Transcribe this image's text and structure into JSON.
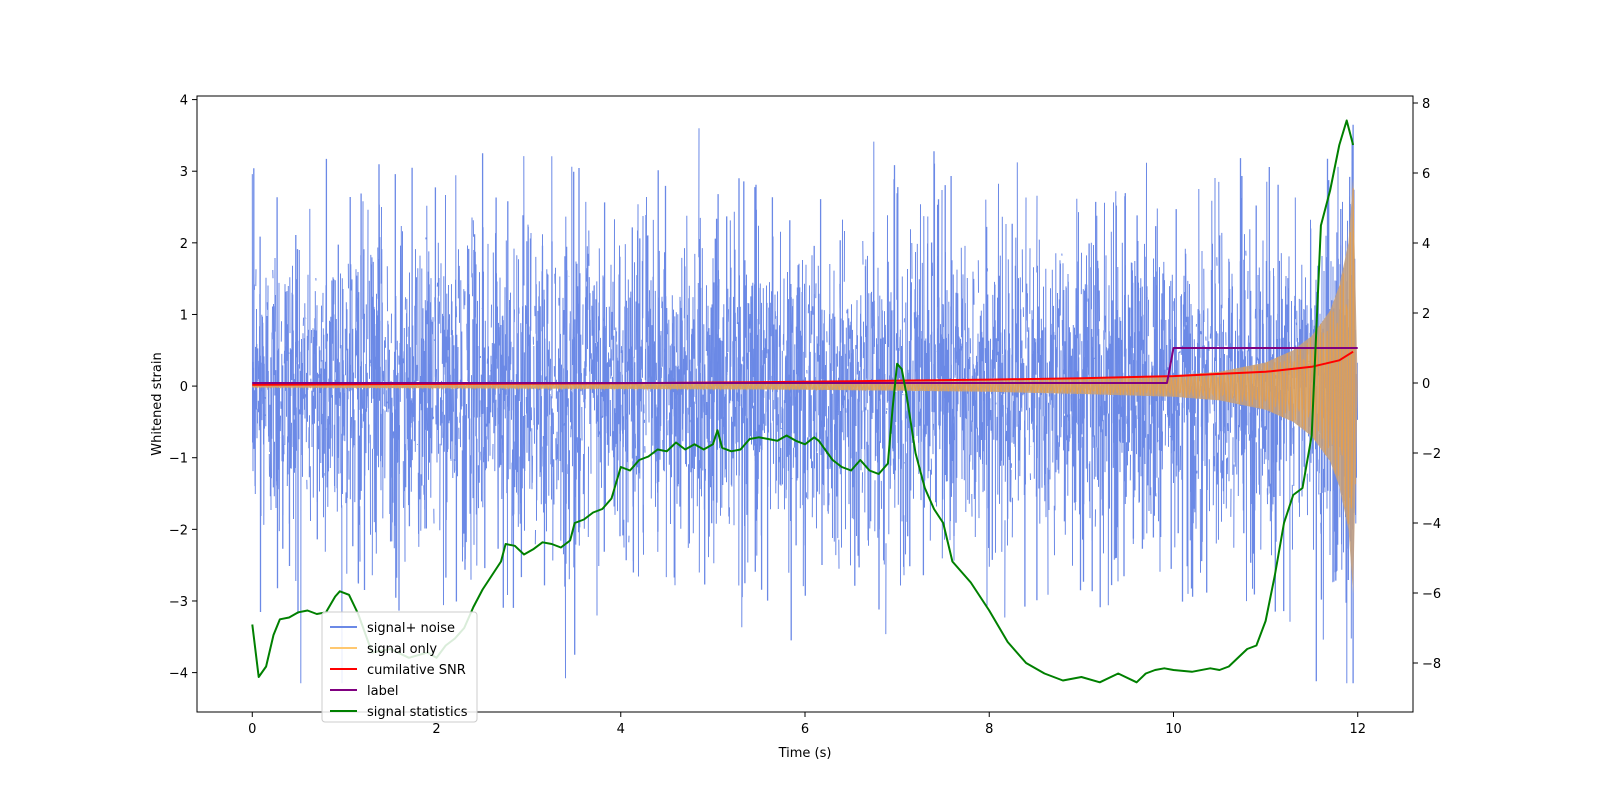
{
  "chart_data": {
    "type": "line",
    "xlabel": "Time (s)",
    "ylabel": "Whitened strain",
    "y2label": "",
    "xlim": [
      -0.6,
      12.6
    ],
    "ylim": [
      -4.55,
      4.05
    ],
    "y2lim": [
      -9.4,
      8.2
    ],
    "x_ticks": [
      0,
      2,
      4,
      6,
      8,
      10,
      12
    ],
    "x_tick_labels": [
      "0",
      "2",
      "4",
      "6",
      "8",
      "10",
      "12"
    ],
    "y_ticks": [
      -4,
      -3,
      -2,
      -1,
      0,
      1,
      2,
      3,
      4
    ],
    "y_tick_labels": [
      "−4",
      "−3",
      "−2",
      "−1",
      "0",
      "1",
      "2",
      "3",
      "4"
    ],
    "y2_ticks": [
      -8,
      -6,
      -4,
      -2,
      0,
      2,
      4,
      6,
      8
    ],
    "y2_tick_labels": [
      "−8",
      "−6",
      "−4",
      "−2",
      "0",
      "2",
      "4",
      "6",
      "8"
    ],
    "grid": false,
    "legend_position": "lower-left",
    "series": [
      {
        "name": "signal+ noise",
        "color": "#6b89e6",
        "axis": "left",
        "kind": "noise",
        "x_range": [
          0,
          12
        ],
        "typical_band": [
          -1.7,
          1.7
        ],
        "max_value": 3.65,
        "min_value": -4.15
      },
      {
        "name": "signal only",
        "color": "#e8a04a",
        "axis": "left",
        "kind": "chirp",
        "x_range": [
          0,
          12
        ],
        "envelope": {
          "x": [
            0,
            2,
            4,
            6,
            8,
            9,
            10,
            10.5,
            11,
            11.3,
            11.5,
            11.7,
            11.8,
            11.9,
            11.95,
            12.0
          ],
          "amplitude": [
            0.02,
            0.03,
            0.04,
            0.05,
            0.08,
            0.11,
            0.15,
            0.2,
            0.33,
            0.5,
            0.7,
            1.05,
            1.4,
            2.0,
            2.9,
            0.0
          ]
        }
      },
      {
        "name": "cumilative SNR",
        "color": "#ff0000",
        "axis": "left",
        "x": [
          0,
          2,
          4,
          6,
          8,
          9,
          10,
          10.5,
          11,
          11.5,
          11.8,
          11.95
        ],
        "y": [
          0.02,
          0.03,
          0.04,
          0.06,
          0.09,
          0.11,
          0.14,
          0.17,
          0.2,
          0.27,
          0.36,
          0.48
        ]
      },
      {
        "name": "label",
        "color": "#800080",
        "axis": "right",
        "x": [
          0,
          9.93,
          10.0,
          12.0
        ],
        "y": [
          0,
          0,
          1,
          1
        ]
      },
      {
        "name": "signal statistics",
        "color": "#008000",
        "axis": "right",
        "x": [
          0.0,
          0.07,
          0.15,
          0.23,
          0.3,
          0.4,
          0.5,
          0.6,
          0.7,
          0.8,
          0.9,
          0.95,
          1.05,
          1.15,
          1.3,
          1.5,
          1.7,
          1.9,
          2.0,
          2.1,
          2.2,
          2.3,
          2.4,
          2.5,
          2.6,
          2.7,
          2.75,
          2.85,
          2.95,
          3.05,
          3.15,
          3.25,
          3.35,
          3.45,
          3.5,
          3.6,
          3.7,
          3.8,
          3.9,
          4.0,
          4.1,
          4.2,
          4.3,
          4.4,
          4.5,
          4.6,
          4.7,
          4.8,
          4.9,
          5.0,
          5.05,
          5.1,
          5.2,
          5.3,
          5.4,
          5.5,
          5.6,
          5.7,
          5.8,
          5.9,
          6.0,
          6.1,
          6.15,
          6.3,
          6.4,
          6.5,
          6.6,
          6.7,
          6.8,
          6.9,
          6.95,
          7.0,
          7.05,
          7.1,
          7.2,
          7.3,
          7.4,
          7.5,
          7.6,
          7.8,
          8.0,
          8.2,
          8.4,
          8.6,
          8.8,
          9.0,
          9.2,
          9.4,
          9.6,
          9.7,
          9.8,
          9.9,
          10.0,
          10.2,
          10.4,
          10.5,
          10.6,
          10.8,
          10.9,
          11.0,
          11.1,
          11.2,
          11.3,
          11.4,
          11.5,
          11.6,
          11.7,
          11.8,
          11.88,
          11.95
        ],
        "y": [
          -6.9,
          -8.4,
          -8.1,
          -7.2,
          -6.75,
          -6.7,
          -6.55,
          -6.5,
          -6.6,
          -6.55,
          -6.1,
          -5.95,
          -6.05,
          -6.6,
          -7.7,
          -7.6,
          -7.85,
          -7.7,
          -7.85,
          -7.5,
          -7.3,
          -7.0,
          -6.4,
          -5.9,
          -5.5,
          -5.1,
          -4.6,
          -4.65,
          -4.9,
          -4.75,
          -4.55,
          -4.6,
          -4.7,
          -4.5,
          -4.0,
          -3.9,
          -3.7,
          -3.6,
          -3.3,
          -2.4,
          -2.5,
          -2.2,
          -2.1,
          -1.9,
          -1.95,
          -1.7,
          -1.9,
          -1.75,
          -1.9,
          -1.75,
          -1.35,
          -1.85,
          -1.95,
          -1.9,
          -1.6,
          -1.55,
          -1.6,
          -1.65,
          -1.5,
          -1.65,
          -1.75,
          -1.55,
          -1.65,
          -2.2,
          -2.4,
          -2.5,
          -2.2,
          -2.5,
          -2.6,
          -2.3,
          -0.75,
          0.55,
          0.4,
          -0.3,
          -2.0,
          -3.0,
          -3.6,
          -4.0,
          -5.1,
          -5.7,
          -6.5,
          -7.4,
          -8.0,
          -8.3,
          -8.5,
          -8.4,
          -8.55,
          -8.3,
          -8.55,
          -8.3,
          -8.2,
          -8.15,
          -8.2,
          -8.25,
          -8.15,
          -8.2,
          -8.1,
          -7.6,
          -7.5,
          -6.8,
          -5.5,
          -4.0,
          -3.2,
          -3.0,
          -1.5,
          4.5,
          5.5,
          6.8,
          7.5,
          6.8
        ]
      }
    ]
  },
  "legend": {
    "items": [
      {
        "label": "signal+ noise",
        "color": "#6b89e6"
      },
      {
        "label": "signal only",
        "color": "#ffc870"
      },
      {
        "label": "cumilative SNR",
        "color": "#ff0000"
      },
      {
        "label": "label",
        "color": "#800080"
      },
      {
        "label": "signal statistics",
        "color": "#008000"
      }
    ]
  }
}
